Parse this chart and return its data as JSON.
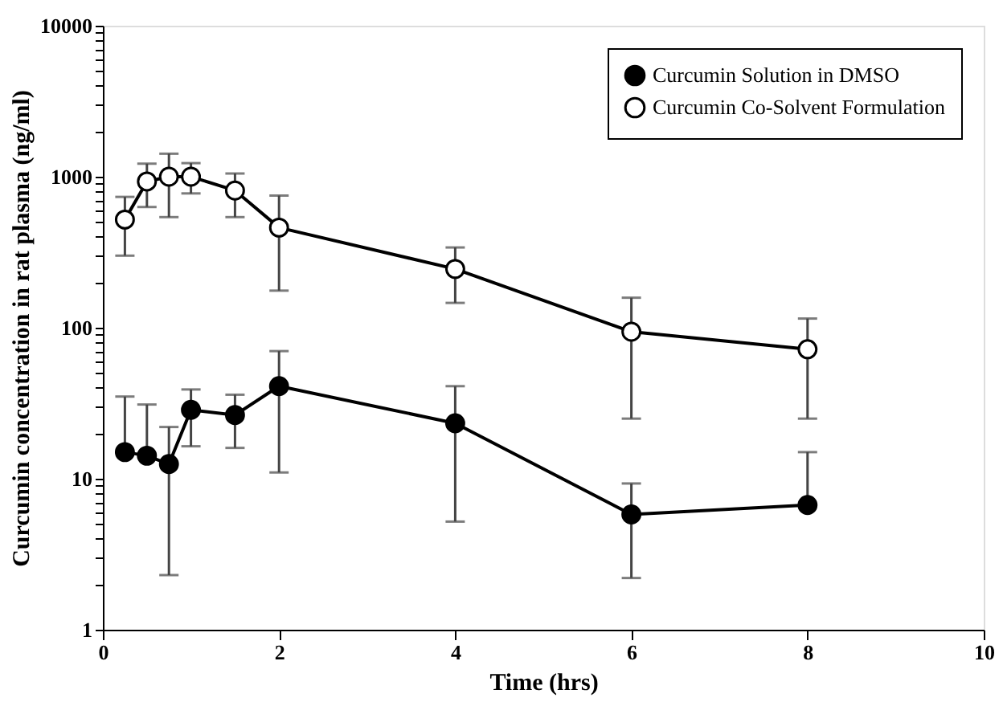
{
  "chart_data": {
    "type": "line",
    "xlabel": "Time (hrs)",
    "ylabel": "Curcumin concentration in rat plasma (ng/ml)",
    "xlim": [
      0,
      10
    ],
    "xticks": [
      0,
      2,
      4,
      6,
      8,
      10
    ],
    "log": "y",
    "ylim": [
      1,
      10000
    ],
    "yticks": [
      1,
      {
        "value": 2,
        "label": null
      },
      {
        "value": 3,
        "label": null
      },
      {
        "value": 4,
        "label": null
      },
      {
        "value": 5,
        "label": null
      },
      {
        "value": 6,
        "label": null
      },
      {
        "value": 7,
        "label": null
      },
      {
        "value": 8,
        "label": null
      },
      {
        "value": 9,
        "label": null
      },
      10,
      {
        "value": 20,
        "label": null
      },
      {
        "value": 30,
        "label": null
      },
      {
        "value": 40,
        "label": null
      },
      {
        "value": 50,
        "label": null
      },
      {
        "value": 60,
        "label": null
      },
      {
        "value": 70,
        "label": null
      },
      {
        "value": 80,
        "label": null
      },
      {
        "value": 90,
        "label": null
      },
      100,
      {
        "value": 200,
        "label": null
      },
      {
        "value": 300,
        "label": null
      },
      {
        "value": 400,
        "label": null
      },
      {
        "value": 500,
        "label": null
      },
      {
        "value": 600,
        "label": null
      },
      {
        "value": 700,
        "label": null
      },
      {
        "value": 800,
        "label": null
      },
      {
        "value": 900,
        "label": null
      },
      1000,
      {
        "value": 2000,
        "label": null
      },
      {
        "value": 3000,
        "label": null
      },
      {
        "value": 4000,
        "label": null
      },
      {
        "value": 5000,
        "label": null
      },
      {
        "value": 6000,
        "label": null
      },
      {
        "value": 7000,
        "label": null
      },
      {
        "value": 8000,
        "label": null
      },
      {
        "value": 9000,
        "label": null
      },
      10000
    ],
    "x": [
      0.25,
      0.5,
      0.75,
      1,
      1.5,
      2,
      4,
      6,
      8
    ],
    "grid": false,
    "legend": "top right",
    "marker": "circle",
    "line_style": "solid",
    "series": [
      {
        "name": "Curcumin Solution in DMSO",
        "color": "#000000",
        "values": [
          15,
          14.2,
          12.5,
          28.6,
          26.4,
          41,
          23.3,
          5.8,
          6.7
        ],
        "errors": [
          [
            15,
            35
          ],
          [
            14.2,
            31
          ],
          [
            2.3,
            22
          ],
          [
            16.4,
            39
          ],
          [
            16,
            36
          ],
          [
            11,
            70
          ],
          [
            5.2,
            41
          ],
          [
            2.2,
            9.3
          ],
          [
            6.7,
            15
          ]
        ]
      },
      {
        "name": "Curcumin Co-Solvent Formulation",
        "color": "#ffffff",
        "values": [
          520,
          930,
          1000,
          1000,
          810,
          460,
          245,
          94,
          72
        ],
        "errors": [
          [
            300,
            735
          ],
          [
            630,
            1220
          ],
          [
            540,
            1420
          ],
          [
            775,
            1230
          ],
          [
            540,
            1050
          ],
          [
            176,
            750
          ],
          [
            146,
            340
          ],
          [
            25,
            158
          ],
          [
            25,
            115
          ]
        ]
      }
    ]
  }
}
